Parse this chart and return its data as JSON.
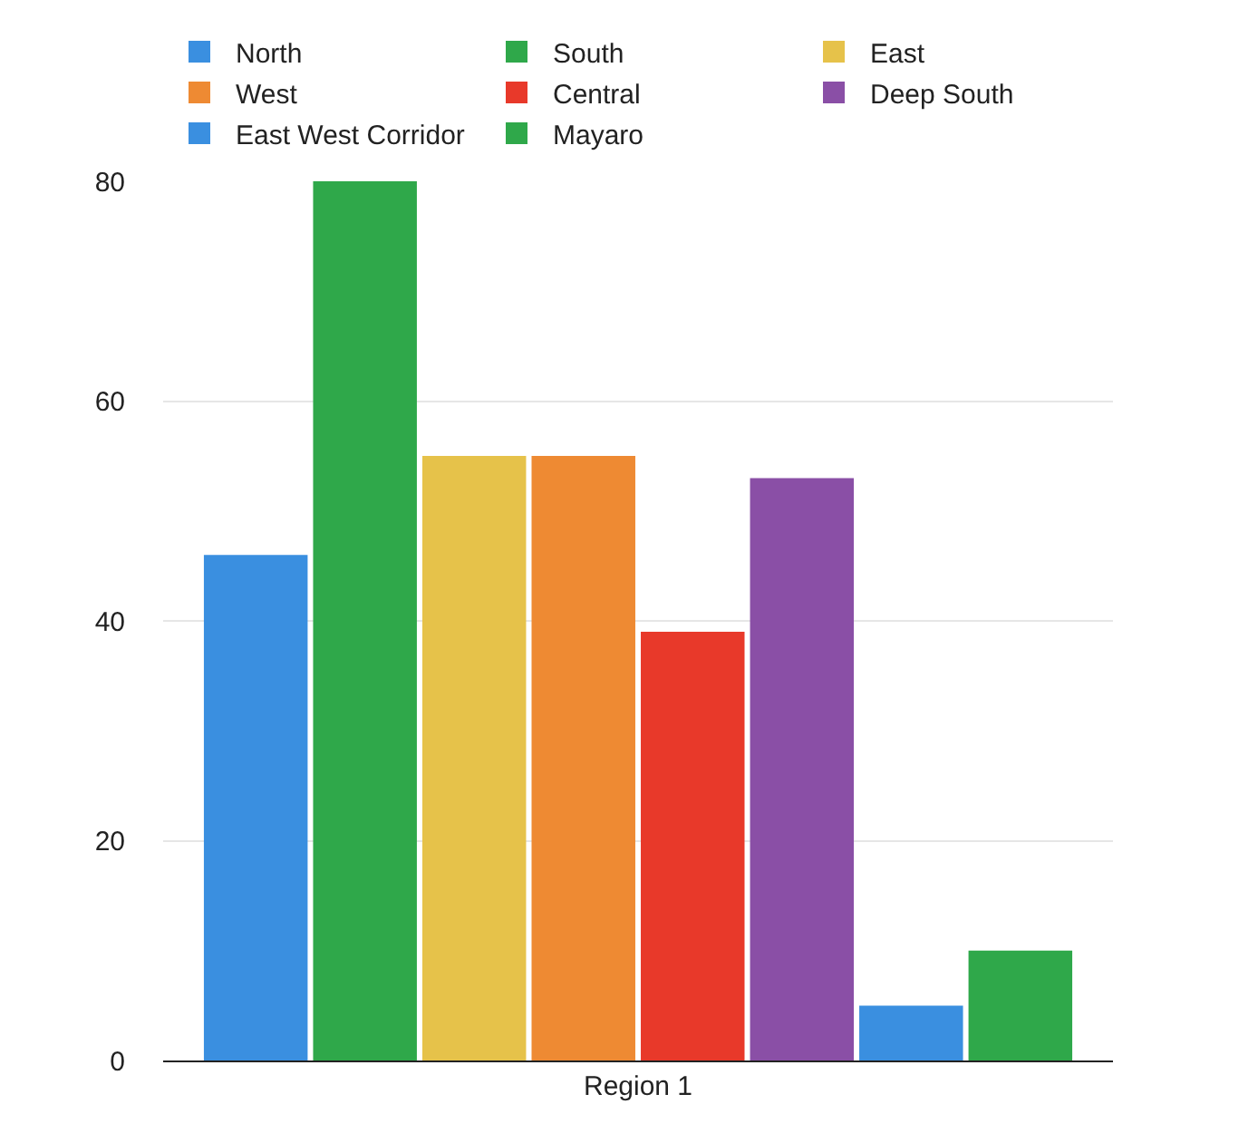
{
  "chart_data": {
    "type": "bar",
    "categories": [
      "Region 1"
    ],
    "series": [
      {
        "name": "North",
        "color": "#3a8fe0",
        "values": [
          46
        ]
      },
      {
        "name": "South",
        "color": "#2fa84a",
        "values": [
          80
        ]
      },
      {
        "name": "East",
        "color": "#e6c24a",
        "values": [
          55
        ]
      },
      {
        "name": "West",
        "color": "#ee8a33",
        "values": [
          55
        ]
      },
      {
        "name": "Central",
        "color": "#e8392a",
        "values": [
          39
        ]
      },
      {
        "name": "Deep South",
        "color": "#8a4fa6",
        "values": [
          53
        ]
      },
      {
        "name": "East West Corridor",
        "color": "#3a8fe0",
        "values": [
          5
        ]
      },
      {
        "name": "Mayaro",
        "color": "#2fa84a",
        "values": [
          10
        ]
      }
    ],
    "ylim": [
      0,
      80
    ],
    "yticks": [
      0,
      20,
      40,
      60,
      80
    ],
    "grid": "y",
    "legend": "top"
  }
}
